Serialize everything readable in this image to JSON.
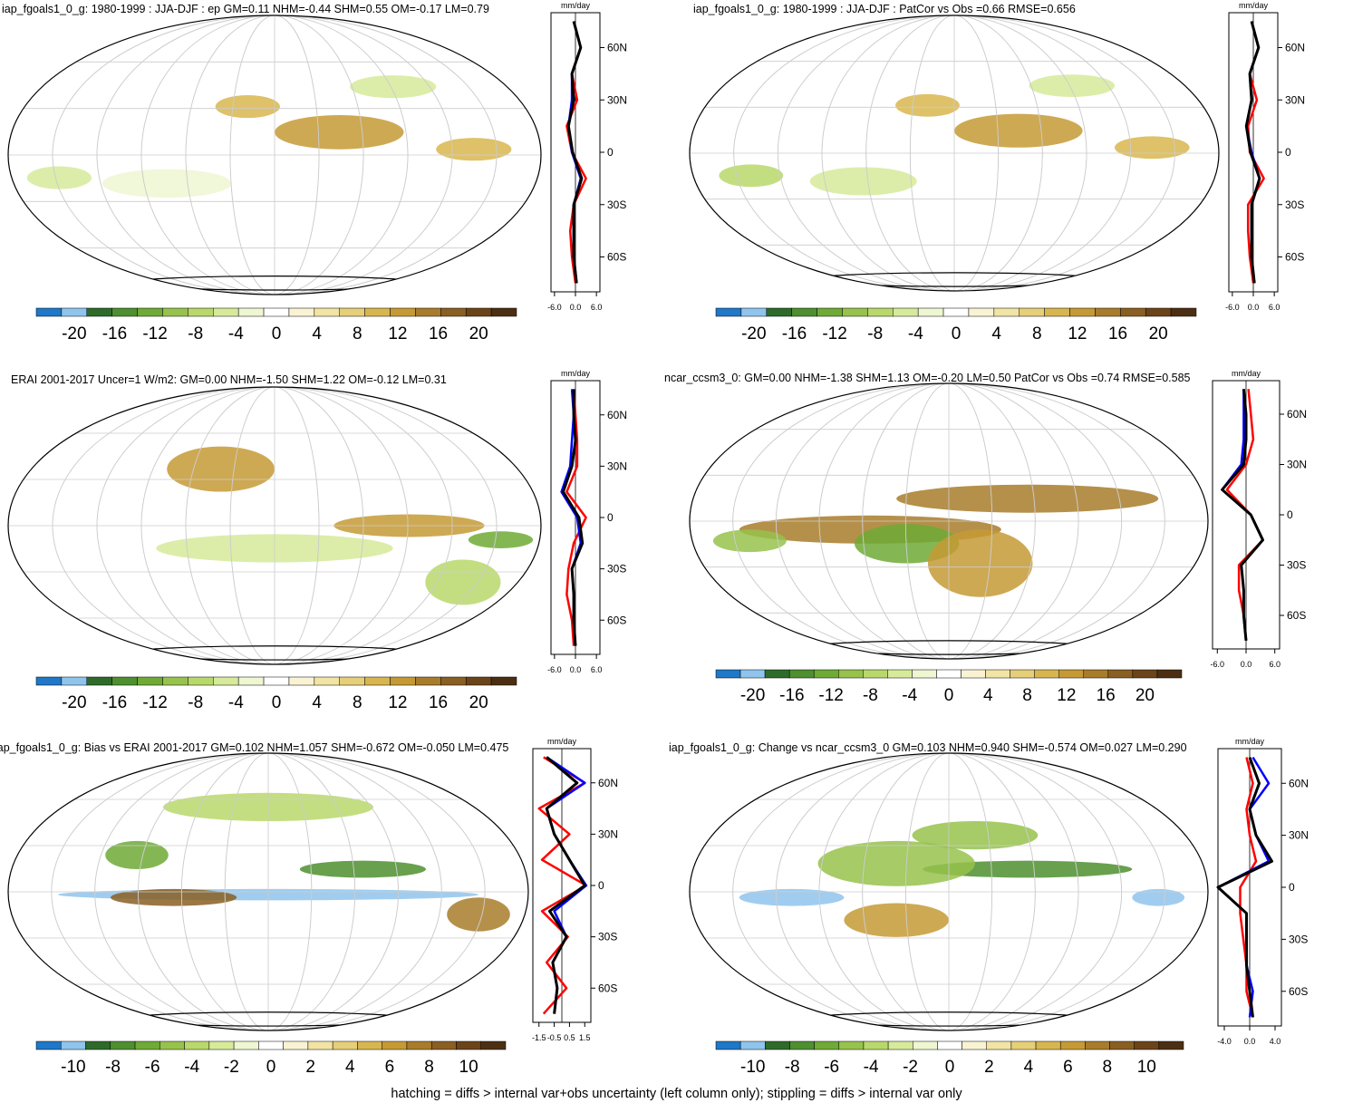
{
  "colors": {
    "palette": [
      "#1f78c8",
      "#8fc4ec",
      "#2e6b2a",
      "#4e8f2f",
      "#6faa36",
      "#97c24c",
      "#b8d86b",
      "#d6ea9a",
      "#eef6d2",
      "#ffffff",
      "#f9f3d4",
      "#f1e4a4",
      "#e6cf79",
      "#d8b64f",
      "#c59a35",
      "#a87c2a",
      "#8a5f22",
      "#6b4419",
      "#4c2f12"
    ],
    "obs": "#ff0000",
    "model1": "#0000ff",
    "model2": "#000000"
  },
  "panels": [
    {
      "title": "iap_fgoals1_0_g: 1980-1999 : JJA-DJF : ep GM=0.11 NHM=-0.44 SHM=0.55 OM=-0.17 LM=0.79",
      "colorbar_labels": [
        "-20",
        "-16",
        "-12",
        "-8",
        "-4",
        "0",
        "4",
        "8",
        "12",
        "16",
        "20"
      ],
      "zonal": {
        "unit": "mm/day",
        "xticks": [
          "-6.0",
          "0.0",
          "6.0"
        ],
        "yticks": [
          "60N",
          "30N",
          "0",
          "30S",
          "60S"
        ]
      }
    },
    {
      "title": "iap_fgoals1_0_g: 1980-1999 : JJA-DJF : PatCor vs Obs =0.66 RMSE=0.656",
      "colorbar_labels": [
        "-20",
        "-16",
        "-12",
        "-8",
        "-4",
        "0",
        "4",
        "8",
        "12",
        "16",
        "20"
      ],
      "zonal": {
        "unit": "mm/day",
        "xticks": [
          "-6.0",
          "0.0",
          "6.0"
        ],
        "yticks": [
          "60N",
          "30N",
          "0",
          "30S",
          "60S"
        ]
      }
    },
    {
      "title": "ERAI 2001-2017 Uncer=1 W/m2: GM=0.00 NHM=-1.50 SHM=1.22 OM=-0.12 LM=0.31",
      "colorbar_labels": [
        "-20",
        "-16",
        "-12",
        "-8",
        "-4",
        "0",
        "4",
        "8",
        "12",
        "16",
        "20"
      ],
      "zonal": {
        "unit": "mm/day",
        "xticks": [
          "-6.0",
          "0.0",
          "6.0"
        ],
        "yticks": [
          "60N",
          "30N",
          "0",
          "30S",
          "60S"
        ]
      }
    },
    {
      "title": "ncar_ccsm3_0: GM=0.00 NHM=-1.38 SHM=1.13 OM=-0.20 LM=0.50 PatCor vs Obs =0.74 RMSE=0.585",
      "colorbar_labels": [
        "-20",
        "-16",
        "-12",
        "-8",
        "-4",
        "0",
        "4",
        "8",
        "12",
        "16",
        "20"
      ],
      "zonal": {
        "unit": "mm/day",
        "xticks": [
          "-6.0",
          "0.0",
          "6.0"
        ],
        "yticks": [
          "60N",
          "30N",
          "0",
          "30S",
          "60S"
        ]
      }
    },
    {
      "title": "iap_fgoals1_0_g: Bias vs ERAI 2001-2017 GM=0.102 NHM=1.057 SHM=-0.672 OM=-0.050 LM=0.475",
      "colorbar_labels": [
        "-10",
        "-8",
        "-6",
        "-4",
        "-2",
        "0",
        "2",
        "4",
        "6",
        "8",
        "10"
      ],
      "zonal": {
        "unit": "mm/day",
        "xticks": [
          "-1.5",
          "-0.5",
          "0.5",
          "1.5"
        ],
        "yticks": [
          "60N",
          "30N",
          "0",
          "30S",
          "60S"
        ]
      }
    },
    {
      "title": "iap_fgoals1_0_g: Change vs ncar_ccsm3_0 GM=0.103 NHM=0.940 SHM=-0.574 OM=0.027 LM=0.290",
      "colorbar_labels": [
        "-10",
        "-8",
        "-6",
        "-4",
        "-2",
        "0",
        "2",
        "4",
        "6",
        "8",
        "10"
      ],
      "zonal": {
        "unit": "mm/day",
        "xticks": [
          "-4.0",
          "0.0",
          "4.0"
        ],
        "yticks": [
          "60N",
          "30N",
          "0",
          "30S",
          "60S"
        ]
      }
    }
  ],
  "footnote": "hatching = diffs > internal var+obs uncertainty (left column only); stippling = diffs > internal var only",
  "chart_data": [
    {
      "type": "map",
      "title": "iap_fgoals1_0_g: 1980-1999 : JJA-DJF : ep GM=0.11 NHM=-0.44 SHM=0.55 OM=-0.17 LM=0.79",
      "colorbar_range": [
        -20,
        20
      ],
      "zonal_profile": {
        "type": "line",
        "xlim": [
          -7,
          7
        ],
        "ylim": [
          -80,
          80
        ],
        "y": [
          75,
          60,
          45,
          30,
          15,
          0,
          -15,
          -30,
          -45,
          -60,
          -75
        ],
        "series": [
          {
            "values": [
              -0.5,
              1.5,
              -1.0,
              0.5,
              -2.5,
              -1.0,
              3.0,
              -0.5,
              -1.5,
              -1.0,
              0.0
            ]
          },
          {
            "values": [
              -0.5,
              1.5,
              -1.0,
              -1.0,
              -2.0,
              -1.0,
              1.5,
              -0.5,
              -0.5,
              -0.5,
              0.3
            ]
          },
          {
            "values": [
              -0.5,
              1.5,
              -1.0,
              -0.5,
              -2.0,
              -0.8,
              1.8,
              -0.5,
              -0.5,
              -0.5,
              0.3
            ]
          }
        ]
      }
    },
    {
      "type": "map",
      "title": "iap_fgoals1_0_g: 1980-1999 : JJA-DJF : PatCor vs Obs =0.66 RMSE=0.656",
      "colorbar_range": [
        -20,
        20
      ],
      "zonal_profile": {
        "type": "line",
        "xlim": [
          -7,
          7
        ],
        "ylim": [
          -80,
          80
        ],
        "y": [
          75,
          60,
          45,
          30,
          15,
          0,
          -15,
          -30,
          -45,
          -60,
          -75
        ],
        "series": [
          {
            "values": [
              -0.5,
              1.5,
              -1.0,
              1.0,
              -1.5,
              -1.0,
              3.0,
              -1.5,
              -1.5,
              -1.0,
              0.0
            ]
          },
          {
            "values": [
              -0.5,
              1.5,
              -1.0,
              -0.5,
              -2.0,
              -0.5,
              1.8,
              -0.5,
              -0.5,
              -0.5,
              0.3
            ]
          },
          {
            "values": [
              -0.5,
              1.5,
              -1.0,
              -0.5,
              -2.0,
              -0.8,
              1.8,
              -0.5,
              -0.5,
              -0.5,
              0.3
            ]
          }
        ]
      }
    },
    {
      "type": "map",
      "title": "ERAI 2001-2017 Uncer=1 W/m2: GM=0.00 NHM=-1.50 SHM=1.22 OM=-0.12 LM=0.31",
      "colorbar_range": [
        -20,
        20
      ],
      "zonal_profile": {
        "type": "line",
        "xlim": [
          -7,
          7
        ],
        "ylim": [
          -80,
          80
        ],
        "y": [
          75,
          60,
          45,
          30,
          15,
          0,
          -15,
          -30,
          -45,
          -60,
          -75
        ],
        "series": [
          {
            "values": [
              -0.5,
              0.0,
              0.5,
              0.5,
              -2.5,
              3.0,
              -0.5,
              -2.0,
              -2.5,
              -1.0,
              -0.5
            ]
          },
          {
            "values": [
              -1.0,
              -0.5,
              -1.0,
              -1.5,
              -4.0,
              0.5,
              1.5,
              -1.0,
              -0.5,
              -0.5,
              0.0
            ]
          },
          {
            "values": [
              -0.5,
              -0.5,
              0.0,
              -1.0,
              -3.5,
              1.0,
              2.0,
              -1.0,
              -0.5,
              -0.5,
              0.0
            ]
          }
        ]
      }
    },
    {
      "type": "map",
      "title": "ncar_ccsm3_0: GM=0.00 NHM=-1.38 SHM=1.13 OM=-0.20 LM=0.50 PatCor vs Obs =0.74 RMSE=0.585",
      "colorbar_range": [
        -20,
        20
      ],
      "zonal_profile": {
        "type": "line",
        "xlim": [
          -7,
          7
        ],
        "ylim": [
          -80,
          80
        ],
        "y": [
          75,
          60,
          45,
          30,
          15,
          0,
          -15,
          -30,
          -45,
          -60,
          -75
        ],
        "series": [
          {
            "values": [
              0.5,
              1.0,
              1.5,
              0.0,
              -4.0,
              1.0,
              3.5,
              -1.5,
              -1.5,
              -0.5,
              0.0
            ]
          },
          {
            "values": [
              -0.5,
              -0.5,
              -0.5,
              -1.0,
              -5.0,
              1.0,
              3.5,
              -1.0,
              -0.5,
              -0.5,
              0.0
            ]
          },
          {
            "values": [
              -0.5,
              0.0,
              0.0,
              -0.5,
              -5.0,
              1.0,
              3.5,
              -1.0,
              -0.5,
              -0.5,
              0.0
            ]
          }
        ]
      }
    },
    {
      "type": "map",
      "title": "iap_fgoals1_0_g: Bias vs ERAI 2001-2017 GM=0.102 NHM=1.057 SHM=-0.672 OM=-0.050 LM=0.475",
      "colorbar_range": [
        -10,
        10
      ],
      "zonal_profile": {
        "type": "line",
        "xlim": [
          -1.9,
          1.9
        ],
        "ylim": [
          -80,
          80
        ],
        "y": [
          75,
          60,
          45,
          30,
          15,
          0,
          -15,
          -30,
          -45,
          -60,
          -75
        ],
        "series": [
          {
            "values": [
              -1.2,
              1.5,
              -1.5,
              0.5,
              -1.3,
              1.6,
              -1.3,
              0.4,
              -1.0,
              0.3,
              -1.2
            ]
          },
          {
            "values": [
              -1.0,
              1.5,
              -1.0,
              -0.5,
              0.5,
              1.6,
              -0.5,
              0.3,
              -0.6,
              -0.3,
              -0.5
            ]
          },
          {
            "values": [
              -1.0,
              1.0,
              -1.0,
              -0.5,
              0.5,
              1.5,
              -0.8,
              0.3,
              -0.6,
              -0.3,
              -0.5
            ]
          }
        ]
      }
    },
    {
      "type": "map",
      "title": "iap_fgoals1_0_g: Change vs ncar_ccsm3_0 GM=0.103 NHM=0.940 SHM=-0.574 OM=0.027 LM=0.290",
      "colorbar_range": [
        -10,
        10
      ],
      "zonal_profile": {
        "type": "line",
        "xlim": [
          -5,
          5
        ],
        "ylim": [
          -80,
          80
        ],
        "y": [
          75,
          60,
          45,
          30,
          15,
          0,
          -15,
          -30,
          -45,
          -60,
          -75
        ],
        "series": [
          {
            "values": [
              -0.5,
              0.5,
              -0.5,
              0.0,
              1.0,
              -1.5,
              -1.5,
              -1.0,
              -0.5,
              -0.5,
              0.5
            ]
          },
          {
            "values": [
              0.5,
              3.0,
              0.0,
              1.0,
              3.0,
              -5.0,
              -0.5,
              -0.5,
              -0.5,
              0.5,
              0.0
            ]
          },
          {
            "values": [
              0.0,
              1.5,
              0.0,
              1.0,
              3.5,
              -5.0,
              -0.5,
              -0.5,
              -0.5,
              0.0,
              0.5
            ]
          }
        ]
      }
    }
  ]
}
